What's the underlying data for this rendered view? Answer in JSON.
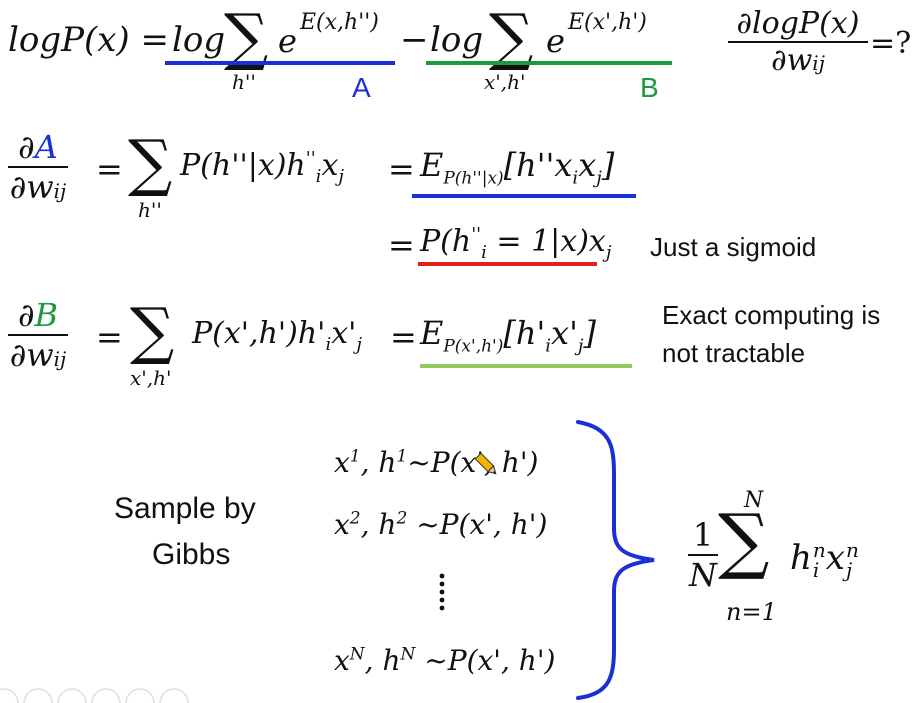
{
  "row1": {
    "lhs": "logP(x) =",
    "log1": "log",
    "sum1": "∑",
    "sum1_index": "h''",
    "exp1_base": "e",
    "exp1_power": "E(x,h'')",
    "minus": "−",
    "log2": "log",
    "sum2": "∑",
    "sum2_index": "x',h'",
    "exp2_base": "e",
    "exp2_power": "E(x',h')",
    "label_a": "A",
    "label_b": "B",
    "deriv_num": "∂logP(x)",
    "deriv_den": "∂w",
    "deriv_den_sub": "ij",
    "deriv_q": "=?"
  },
  "row2": {
    "num_d": "∂",
    "num_a": "A",
    "den": "∂w",
    "den_sub": "ij",
    "eq1": "=",
    "sum": "∑",
    "sum_index": "h''",
    "term": "P(h''|x)h",
    "term_sup": "''",
    "term_sub": "i",
    "term_end": "x",
    "term_end_sub": "j",
    "eq2": "=",
    "expect": "E",
    "expect_sub": "P(h''|x)",
    "expect_arg": "[h''x",
    "expect_arg_sub": "i",
    "expect_arg_sub2": "j",
    "expect_close": "]"
  },
  "row3": {
    "eq": "=",
    "term": "P(h",
    "term_sup": "''",
    "term_sub": "i",
    "term_mid": " = 1|x)",
    "term_end": "x",
    "term_end_sub": "j",
    "note": "Just a sigmoid"
  },
  "row4": {
    "num_d": "∂",
    "num_b": "B",
    "den": "∂w",
    "den_sub": "ij",
    "eq1": "=",
    "sum": "∑",
    "sum_index": "x',h'",
    "term": "P(x',h')h'",
    "term_sub": "i",
    "term_end": "x'",
    "term_end_sub": "j",
    "eq2": "=",
    "expect": "E",
    "expect_sub": "P(x',h')",
    "expect_arg": "[h'",
    "expect_arg_sub": "i",
    "expect_arg_mid": "x'",
    "expect_arg_sub2": "j",
    "expect_close": "]",
    "note_line1": "Exact computing is",
    "note_line2": "not tractable"
  },
  "gibbs": {
    "label_line1": "Sample by",
    "label_line2": "Gibbs",
    "s1_x": "x",
    "s1_sup": "1",
    "s1_h": ", h",
    "s1_hsup": "1",
    "s1_rest": "~P(x', h')",
    "s2_x": "x",
    "s2_sup": "2",
    "s2_h": ", h",
    "s2_hsup": "2",
    "s2_rest": " ~P(x', h')",
    "sN_x": "x",
    "sN_sup": "N",
    "sN_h": ", h",
    "sN_hsup": "N",
    "sN_rest": " ~P(x', h')",
    "avg_num": "1",
    "avg_den": "N",
    "avg_sum": "∑",
    "avg_top": "N",
    "avg_bottom": "n=1",
    "avg_term": "h",
    "avg_term_sup": "n",
    "avg_term_sub": "i",
    "avg_term2": "x",
    "avg_term2_sup": "n",
    "avg_term2_sub": "j"
  },
  "colors": {
    "blue": "#1a2fd6",
    "green": "#1e9a3c",
    "red": "#e0201b",
    "lightgreen": "#92c95a",
    "text": "#111111"
  }
}
